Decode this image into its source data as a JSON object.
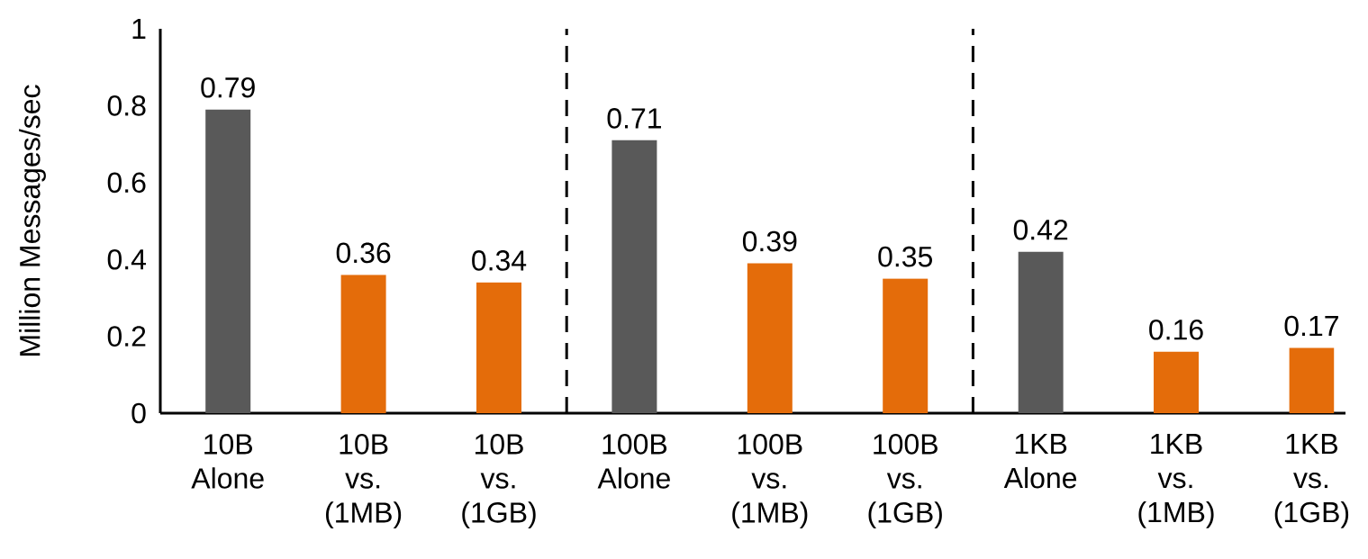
{
  "chart_data": {
    "type": "bar",
    "ylabel": "Million Messages/sec",
    "categories": [
      "10B Alone",
      "10B vs. (1MB)",
      "10B vs. (1GB)",
      "100B Alone",
      "100B vs. (1MB)",
      "100B vs. (1GB)",
      "1KB Alone",
      "1KB vs. (1MB)",
      "1KB vs. (1GB)"
    ],
    "values": [
      0.79,
      0.36,
      0.34,
      0.71,
      0.39,
      0.35,
      0.42,
      0.16,
      0.17
    ],
    "colors": [
      "#595959",
      "#e46c0a",
      "#e46c0a",
      "#595959",
      "#e46c0a",
      "#e46c0a",
      "#595959",
      "#e46c0a",
      "#e46c0a"
    ],
    "ylim": [
      0,
      1
    ],
    "yticks": [
      0,
      0.2,
      0.4,
      0.6,
      0.8,
      1
    ],
    "data_labels": true,
    "grid": false
  }
}
